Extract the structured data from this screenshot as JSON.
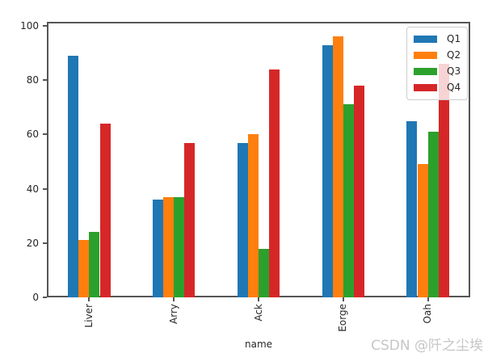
{
  "watermark": "CSDN @阡之尘埃",
  "colors": {
    "axis": "#565656",
    "tick_label": "#262626",
    "watermark_gray": "#c6c6c6",
    "legend_border": "#cccccc"
  },
  "chart_data": {
    "type": "bar",
    "title": "",
    "xlabel": "name",
    "ylabel": "",
    "categories": [
      "Liver",
      "Arry",
      "Ack",
      "Eorge",
      "Oah"
    ],
    "series": [
      {
        "name": "Q1",
        "color": "#1f77b4",
        "values": [
          89,
          36,
          57,
          93,
          65
        ]
      },
      {
        "name": "Q2",
        "color": "#ff7f0e",
        "values": [
          21,
          37,
          60,
          96,
          49
        ]
      },
      {
        "name": "Q3",
        "color": "#2ca02c",
        "values": [
          24,
          37,
          18,
          71,
          61
        ]
      },
      {
        "name": "Q4",
        "color": "#d62728",
        "values": [
          64,
          57,
          84,
          78,
          86
        ]
      }
    ],
    "ylim": [
      0,
      101.5
    ],
    "yticks": [
      0,
      20,
      40,
      60,
      80,
      100
    ],
    "grid": false,
    "legend_position": "upper right",
    "legend_labels": [
      "Q1",
      "Q2",
      "Q3",
      "Q4"
    ],
    "bar_group_fraction": 0.5,
    "xtick_rotation": 90
  }
}
